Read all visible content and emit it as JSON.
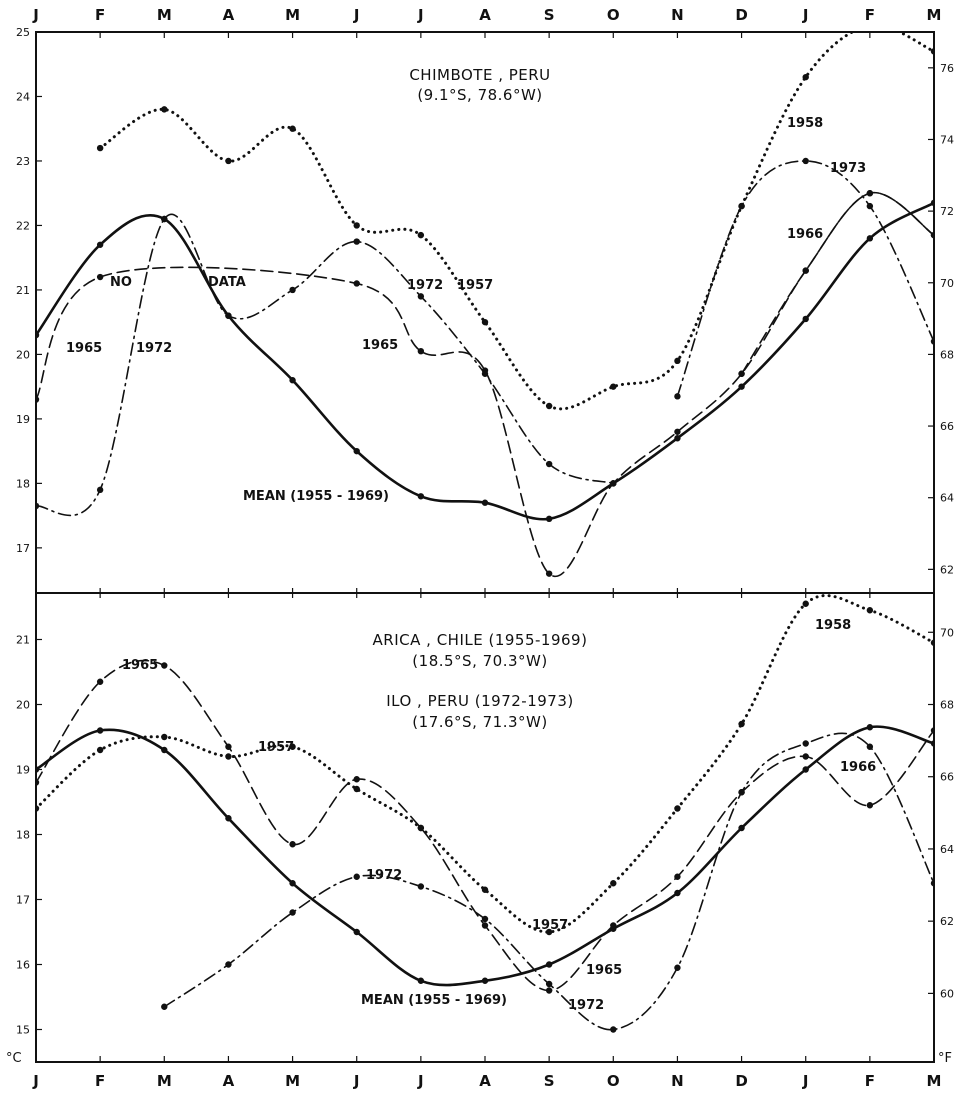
{
  "months": [
    "J",
    "F",
    "M",
    "A",
    "M",
    "J",
    "J",
    "A",
    "S",
    "O",
    "N",
    "D",
    "J",
    "F",
    "M"
  ],
  "chart_data": [
    {
      "type": "line",
      "title": "CHIMBOTE , PERU",
      "subtitle": "(9.1°S, 78.6°W)",
      "x_axis": "month",
      "ylim": [
        16.3,
        25
      ],
      "y_ticks": [
        17,
        18,
        19,
        20,
        21,
        22,
        23,
        24,
        25
      ],
      "y2_ticks": [
        62,
        64,
        66,
        68,
        70,
        72,
        74,
        76
      ],
      "y2_unit_convert": "F",
      "series": [
        {
          "name": "MEAN (1955-1969)",
          "style": "solid",
          "x": [
            0,
            1,
            2,
            3,
            4,
            5,
            6,
            7,
            8,
            9,
            10,
            11,
            12,
            13,
            14
          ],
          "y": [
            20.3,
            21.7,
            22.1,
            20.6,
            19.6,
            18.5,
            17.8,
            17.7,
            17.45,
            18.0,
            18.7,
            19.5,
            20.55,
            21.8,
            22.35
          ]
        },
        {
          "name": "1965",
          "style": "dashed",
          "x": [
            0,
            1,
            5,
            6,
            7,
            8,
            9,
            10,
            11,
            12,
            13,
            14
          ],
          "y": [
            19.3,
            21.2,
            21.1,
            20.05,
            19.75,
            16.6,
            18.0,
            18.8,
            19.7,
            21.3,
            22.5,
            21.85
          ]
        },
        {
          "name": "1972",
          "style": "dashdot",
          "x": [
            0,
            1,
            2,
            3,
            4,
            5,
            6,
            7,
            8,
            9
          ],
          "y": [
            17.65,
            17.9,
            22.1,
            20.6,
            21.0,
            21.75,
            20.9,
            19.7,
            18.3,
            18.0
          ]
        },
        {
          "name": "1957",
          "style": "dotted",
          "x": [
            1,
            2,
            3,
            4,
            5,
            6,
            7,
            8,
            9,
            10,
            11,
            12,
            13,
            14
          ],
          "y": [
            23.2,
            23.8,
            23.0,
            23.5,
            22.0,
            21.85,
            20.5,
            19.2,
            19.5,
            19.9,
            22.3,
            24.3,
            25.1,
            24.7
          ]
        },
        {
          "name": "1973",
          "style": "dashdot",
          "x": [
            10,
            11,
            12,
            13,
            14
          ],
          "y": [
            19.35,
            22.3,
            23.0,
            22.3,
            20.2
          ]
        },
        {
          "name": "1966",
          "style": "dashed",
          "x": [
            11,
            12,
            13,
            14
          ],
          "y": [
            19.7,
            21.3,
            22.5,
            21.85
          ]
        }
      ],
      "annotations": [
        "NO",
        "DATA",
        "1965",
        "1972",
        "1965",
        "1972",
        "1957",
        "MEAN (1955 - 1969)",
        "1958",
        "1973",
        "1966"
      ]
    },
    {
      "type": "line",
      "title": "ARICA , CHILE (1955-1969)",
      "subtitle": "(18.5°S, 70.3°W)",
      "title2": "ILO , PERU (1972-1973)",
      "subtitle2": "(17.6°S, 71.3°W)",
      "x_axis": "month",
      "ylim": [
        14.5,
        21.7
      ],
      "y_ticks": [
        15,
        16,
        17,
        18,
        19,
        20,
        21
      ],
      "y2_ticks": [
        60,
        62,
        64,
        66,
        68,
        70
      ],
      "y2_unit_convert": "F",
      "series": [
        {
          "name": "MEAN (1955-1969)",
          "style": "solid",
          "x": [
            0,
            1,
            2,
            3,
            4,
            5,
            6,
            7,
            8,
            9,
            10,
            11,
            12,
            13,
            14
          ],
          "y": [
            19.0,
            19.6,
            19.3,
            18.25,
            17.25,
            16.5,
            15.75,
            15.75,
            16.0,
            16.55,
            17.1,
            18.1,
            19.0,
            19.65,
            19.4
          ]
        },
        {
          "name": "1965",
          "style": "dashed",
          "x": [
            0,
            1,
            2,
            3,
            4,
            5,
            6,
            7,
            8,
            9,
            10,
            11,
            12,
            13,
            14
          ],
          "y": [
            18.8,
            20.35,
            20.6,
            19.35,
            17.85,
            18.85,
            18.1,
            16.6,
            15.6,
            16.6,
            17.35,
            18.65,
            19.2,
            18.45,
            19.6
          ]
        },
        {
          "name": "1957",
          "style": "dotted",
          "x": [
            0,
            1,
            2,
            3,
            4,
            5,
            6,
            7,
            8,
            9,
            10,
            11,
            12,
            13,
            14
          ],
          "y": [
            18.4,
            19.3,
            19.5,
            19.2,
            19.35,
            18.7,
            18.1,
            17.15,
            16.5,
            17.25,
            18.4,
            19.7,
            21.55,
            21.45,
            20.95
          ]
        },
        {
          "name": "1972",
          "style": "dashdot",
          "x": [
            2,
            3,
            4,
            5,
            6,
            7,
            8,
            9,
            10,
            11,
            12,
            13,
            14
          ],
          "y": [
            15.35,
            16.0,
            16.8,
            17.35,
            17.2,
            16.7,
            15.7,
            15.0,
            15.95,
            18.65,
            19.4,
            19.35,
            17.25
          ]
        }
      ],
      "annotations": [
        "1965",
        "1957",
        "1972",
        "1957",
        "1965",
        "1972",
        "MEAN (1955 - 1969)",
        "1958",
        "1966"
      ]
    }
  ],
  "units": {
    "left": "°C",
    "right": "°F"
  }
}
